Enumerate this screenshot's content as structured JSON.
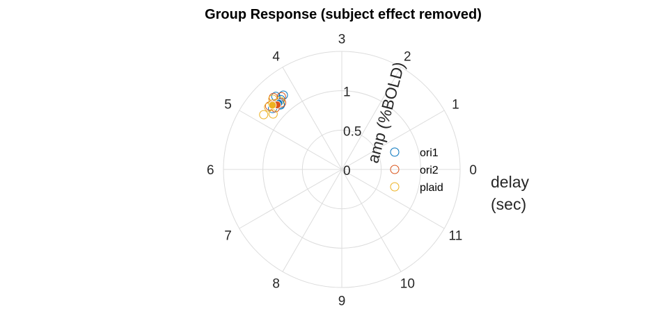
{
  "chart_data": {
    "type": "scatter",
    "coordinate_system": "polar",
    "title": "Group Response (subject effect removed)",
    "angular_axis": {
      "label": "delay (sec)",
      "label_lines": [
        "delay",
        "(sec)"
      ],
      "period": 12,
      "zero_direction": "east",
      "direction": "clockwise",
      "ticks": [
        0,
        1,
        2,
        3,
        4,
        5,
        6,
        7,
        8,
        9,
        10,
        11
      ]
    },
    "radial_axis": {
      "label": "amp (%BOLD)",
      "range": [
        0,
        1.5
      ],
      "ticks": [
        0,
        0.5,
        1
      ]
    },
    "grid": true,
    "legend": {
      "placement": "right",
      "entries": [
        "ori1",
        "ori2",
        "plaid"
      ]
    },
    "series": [
      {
        "name": "ori1",
        "color": "#0072BD",
        "mean": {
          "delay": 4.45,
          "amp": 1.16
        },
        "points": [
          {
            "delay": 4.27,
            "amp": 1.2
          },
          {
            "delay": 4.4,
            "amp": 1.25
          },
          {
            "delay": 4.45,
            "amp": 1.13
          },
          {
            "delay": 4.62,
            "amp": 1.17
          },
          {
            "delay": 4.37,
            "amp": 1.18
          },
          {
            "delay": 4.44,
            "amp": 1.14
          }
        ]
      },
      {
        "name": "ori2",
        "color": "#D95319",
        "mean": {
          "delay": 4.5,
          "amp": 1.16
        },
        "points": [
          {
            "delay": 4.32,
            "amp": 1.2
          },
          {
            "delay": 4.45,
            "amp": 1.26
          },
          {
            "delay": 4.57,
            "amp": 1.15
          },
          {
            "delay": 4.62,
            "amp": 1.22
          },
          {
            "delay": 4.4,
            "amp": 1.14
          },
          {
            "delay": 4.49,
            "amp": 1.18
          }
        ]
      },
      {
        "name": "plaid",
        "color": "#EDB120",
        "mean": {
          "delay": 4.57,
          "amp": 1.2
        },
        "points": [
          {
            "delay": 4.83,
            "amp": 1.21
          },
          {
            "delay": 4.65,
            "amp": 1.22
          },
          {
            "delay": 4.55,
            "amp": 1.21
          },
          {
            "delay": 4.7,
            "amp": 1.12
          },
          {
            "delay": 4.4,
            "amp": 1.17
          },
          {
            "delay": 4.48,
            "amp": 1.25
          }
        ]
      }
    ]
  }
}
